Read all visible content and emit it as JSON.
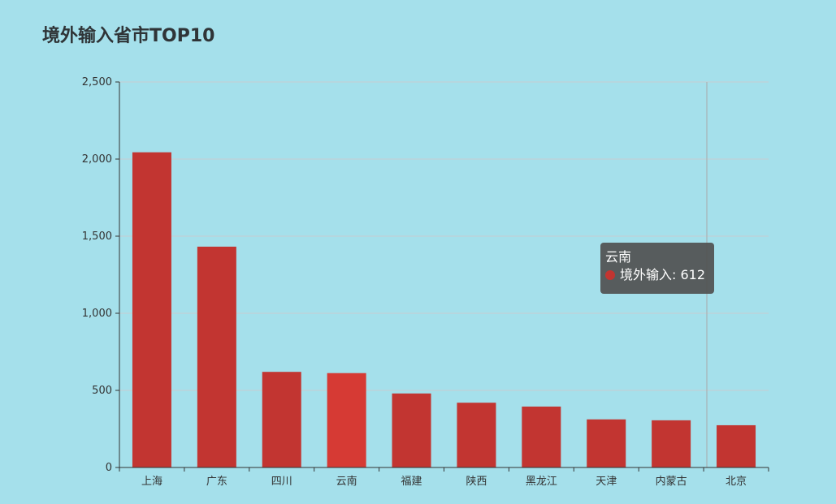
{
  "chart_data": {
    "type": "bar",
    "title": "境外输入省市TOP10",
    "categories": [
      "上海",
      "广东",
      "四川",
      "云南",
      "福建",
      "陕西",
      "黑龙江",
      "天津",
      "内蒙古",
      "北京"
    ],
    "series": [
      {
        "name": "境外输入",
        "values": [
          2044,
          1432,
          620,
          612,
          480,
          420,
          395,
          312,
          306,
          274
        ]
      }
    ],
    "ylim": [
      0,
      2500
    ],
    "yticks": [
      0,
      500,
      1000,
      1500,
      2000,
      2500
    ],
    "ytick_labels": [
      "0",
      "500",
      "1,000",
      "1,500",
      "2,000",
      "2,500"
    ],
    "grid": true,
    "bar_color": "#c23531",
    "highlight_color": "#d63a34",
    "highlight_index": 3,
    "tooltip": {
      "title": "云南",
      "series_name": "境外输入",
      "value": "612",
      "marker_color": "#c23531"
    }
  }
}
